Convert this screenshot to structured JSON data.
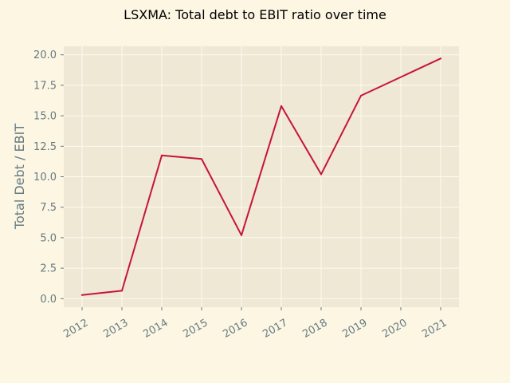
{
  "colors": {
    "page_background": "#fdf6e3",
    "plot_background": "#eee8d5",
    "grid": "#fdfaf0",
    "line": "#c7143a",
    "text": "#657b83",
    "title": "#000000"
  },
  "chart_data": {
    "type": "line",
    "title": "LSXMA: Total debt to EBIT ratio over time",
    "xlabel": "",
    "ylabel": "Total Debt / EBIT",
    "x": [
      "2012",
      "2013",
      "2014",
      "2015",
      "2016",
      "2017",
      "2018",
      "2019",
      "2020",
      "2021"
    ],
    "series": [
      {
        "values": [
          0.3,
          0.65,
          11.75,
          11.45,
          5.2,
          15.8,
          10.2,
          16.65,
          null,
          19.7
        ]
      }
    ],
    "ylim": [
      -0.7,
      20.7
    ],
    "yticks": [
      "0.0",
      "2.5",
      "5.0",
      "7.5",
      "10.0",
      "12.5",
      "15.0",
      "17.5",
      "20.0"
    ],
    "grid": true,
    "legend": "none"
  }
}
